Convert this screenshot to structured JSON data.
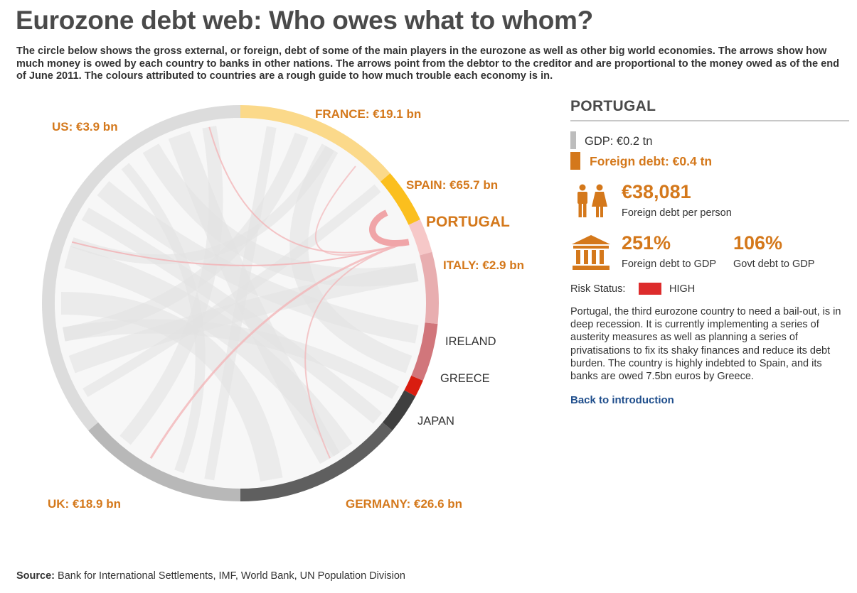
{
  "title": "Eurozone debt web: Who owes what to whom?",
  "intro": "The circle below shows the gross external, or foreign, debt of some of the main players in the eurozone as well as other big world economies. The arrows show how much money is owed by each country to banks in other nations. The arrows point from the debtor to the creditor and are proportional to the money owed as of the end of June 2011. The colours attributed to countries are a rough guide to how much trouble each economy is in.",
  "diagram": {
    "selected": "PORTUGAL",
    "segments": [
      {
        "country": "US",
        "label": "US: €3.9 bn",
        "color": "#dcdcdc",
        "highlight": true
      },
      {
        "country": "FRANCE",
        "label": "FRANCE: €19.1 bn",
        "color": "#fbd98a",
        "highlight": true
      },
      {
        "country": "SPAIN",
        "label": "SPAIN: €65.7 bn",
        "color": "#fbbf1e",
        "highlight": true
      },
      {
        "country": "PORTUGAL",
        "label": "PORTUGAL",
        "color": "#f6c8c8",
        "highlight": true
      },
      {
        "country": "ITALY",
        "label": "ITALY: €2.9 bn",
        "color": "#e8aeb0",
        "highlight": true
      },
      {
        "country": "IRELAND",
        "label": "IRELAND",
        "color": "#d1767b",
        "highlight": false
      },
      {
        "country": "GREECE",
        "label": "GREECE",
        "color": "#d91d10",
        "highlight": false
      },
      {
        "country": "JAPAN",
        "label": "JAPAN",
        "color": "#3f3f3f",
        "highlight": false
      },
      {
        "country": "GERMANY",
        "label": "GERMANY: €26.6 bn",
        "color": "#5f5f5f",
        "highlight": true
      },
      {
        "country": "UK",
        "label": "UK: €18.9 bn",
        "color": "#b8b8b8",
        "highlight": true
      }
    ]
  },
  "panel": {
    "country": "PORTUGAL",
    "gdp": "GDP: €0.2 tn",
    "foreign_debt": "Foreign debt: €0.4 tn",
    "per_person_value": "€38,081",
    "per_person_label": "Foreign debt per person",
    "foreign_gdp_value": "251%",
    "foreign_gdp_label": "Foreign debt to GDP",
    "govt_gdp_value": "106%",
    "govt_gdp_label": "Govt debt to GDP",
    "risk_label": "Risk Status:",
    "risk_value": "HIGH",
    "risk_color": "#dd2c2c",
    "description": "Portugal, the third eurozone country to need a bail-out, is in deep recession. It is currently implementing a series of austerity measures as well as planning a series of privatisations to fix its shaky finances and reduce its debt burden. The country is highly indebted to Spain, and its banks are owed 7.5bn euros by Greece.",
    "back_link": "Back to introduction"
  },
  "source": {
    "label": "Source:",
    "text": " Bank for International Settlements, IMF, World Bank, UN Population Division"
  }
}
